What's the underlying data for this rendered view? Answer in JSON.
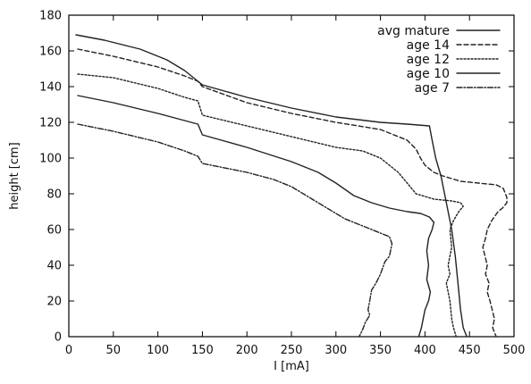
{
  "chart_data": {
    "type": "line",
    "title": "",
    "xlabel": "I [mA]",
    "ylabel": "height [cm]",
    "xlim": [
      0,
      500
    ],
    "ylim": [
      0,
      180
    ],
    "xticks": [
      0,
      50,
      100,
      150,
      200,
      250,
      300,
      350,
      400,
      450,
      500
    ],
    "yticks": [
      0,
      20,
      40,
      60,
      80,
      100,
      120,
      140,
      160,
      180
    ],
    "grid": false,
    "legend_position": "top-right",
    "series": [
      {
        "name": "avg mature",
        "dash": "none",
        "x": [
          8,
          40,
          80,
          110,
          130,
          150,
          200,
          250,
          300,
          350,
          380,
          405,
          408,
          412,
          415,
          418,
          422,
          426,
          430,
          434,
          437,
          440,
          443,
          447
        ],
        "y": [
          169,
          166,
          161,
          155,
          149,
          141,
          134,
          128,
          123,
          120,
          119,
          118,
          110,
          100,
          95,
          90,
          80,
          70,
          60,
          45,
          30,
          15,
          5,
          0
        ]
      },
      {
        "name": "age 14",
        "dash": "5,3",
        "x": [
          10,
          50,
          100,
          130,
          145,
          150,
          200,
          250,
          300,
          350,
          380,
          390,
          395,
          400,
          410,
          420,
          440,
          460,
          480,
          488,
          492,
          492,
          487,
          482,
          475,
          470,
          468,
          465,
          470,
          468,
          472,
          470,
          473,
          478,
          476,
          480
        ],
        "y": [
          161,
          157,
          151,
          146,
          143,
          140,
          131,
          125,
          120,
          116,
          110,
          105,
          100,
          96,
          92,
          90,
          87,
          86,
          85,
          83,
          78,
          75,
          72,
          70,
          65,
          60,
          55,
          50,
          40,
          35,
          30,
          25,
          20,
          10,
          5,
          0
        ]
      },
      {
        "name": "age 12",
        "dash": "2,2",
        "x": [
          10,
          50,
          100,
          130,
          145,
          150,
          200,
          250,
          300,
          330,
          350,
          370,
          380,
          390,
          410,
          430,
          440,
          443,
          438,
          432,
          428,
          430,
          426,
          428,
          424,
          428,
          430,
          432,
          435
        ],
        "y": [
          147,
          145,
          139,
          134,
          132,
          124,
          118,
          112,
          106,
          104,
          100,
          92,
          86,
          80,
          77,
          76,
          75,
          73,
          70,
          65,
          60,
          50,
          40,
          35,
          30,
          20,
          10,
          5,
          0
        ]
      },
      {
        "name": "age 10",
        "dash": "none",
        "x": [
          10,
          50,
          100,
          130,
          145,
          150,
          200,
          250,
          280,
          300,
          320,
          340,
          360,
          380,
          395,
          405,
          410,
          408,
          404,
          402,
          404,
          402,
          406,
          404,
          400,
          398,
          396,
          393
        ],
        "y": [
          135,
          131,
          125,
          121,
          119,
          113,
          106,
          98,
          92,
          86,
          79,
          75,
          72,
          70,
          69,
          67,
          64,
          60,
          55,
          48,
          40,
          32,
          25,
          20,
          15,
          10,
          5,
          0
        ]
      },
      {
        "name": "age 7",
        "dash": "6,2,1.5,2",
        "x": [
          10,
          50,
          100,
          130,
          145,
          150,
          200,
          230,
          250,
          270,
          290,
          310,
          330,
          350,
          360,
          363,
          360,
          355,
          350,
          345,
          340,
          338,
          336,
          338,
          333,
          330,
          326
        ],
        "y": [
          119,
          115,
          109,
          104,
          101,
          97,
          92,
          88,
          84,
          78,
          72,
          66,
          62,
          58,
          56,
          52,
          45,
          42,
          35,
          30,
          26,
          20,
          15,
          12,
          8,
          4,
          0
        ]
      }
    ]
  }
}
